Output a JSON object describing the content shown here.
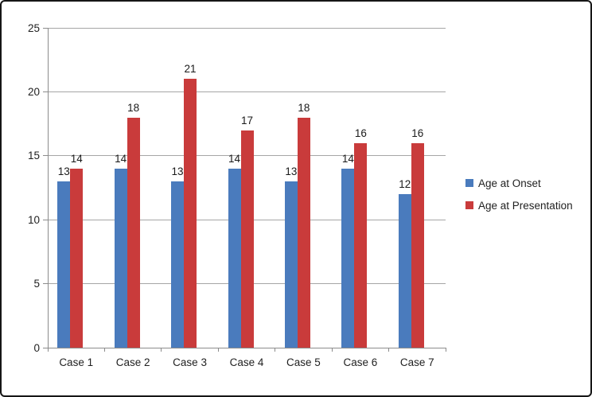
{
  "chart_data": {
    "type": "bar",
    "title": "",
    "xlabel": "",
    "ylabel": "",
    "categories": [
      "Case 1",
      "Case 2",
      "Case 3",
      "Case 4",
      "Case 5",
      "Case 6",
      "Case 7"
    ],
    "series": [
      {
        "name": "Age at Onset",
        "color": "#4a7bbd",
        "values": [
          13,
          14,
          13,
          14,
          13,
          14,
          12
        ]
      },
      {
        "name": "Age at Presentation",
        "color": "#c93b3b",
        "values": [
          14,
          18,
          21,
          17,
          18,
          16,
          16
        ]
      }
    ],
    "ylim": [
      0,
      25
    ],
    "yticks": [
      0,
      5,
      10,
      15,
      20,
      25
    ],
    "grid": "horizontal",
    "legend_position": "right",
    "data_labels": true
  },
  "style": {
    "grid_color": "#a6a6a6",
    "axis_color": "#8c8c8c",
    "text_color": "#1f1f1f",
    "background": "#ffffff",
    "border_color": "#161616"
  }
}
